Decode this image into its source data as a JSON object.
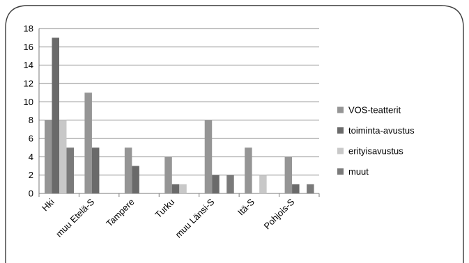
{
  "chart_data": {
    "type": "bar",
    "categories": [
      "Hki",
      "muu Etelä-S",
      "Tampere",
      "Turku",
      "muu Länsi-S",
      "Itä-S",
      "Pohjois-S"
    ],
    "series": [
      {
        "name": "VOS-teatterit",
        "color": "#959595",
        "values": [
          8,
          11,
          5,
          4,
          8,
          5,
          4
        ]
      },
      {
        "name": "toiminta-avustus",
        "color": "#6a6a6a",
        "values": [
          17,
          5,
          3,
          1,
          2,
          0,
          1
        ]
      },
      {
        "name": "erityisavustus",
        "color": "#c8c8c8",
        "values": [
          8,
          0,
          0,
          1,
          0,
          2,
          0
        ]
      },
      {
        "name": "muut",
        "color": "#7a7a7a",
        "values": [
          5,
          0,
          0,
          0,
          2,
          0,
          1
        ]
      }
    ],
    "ylim": [
      0,
      18
    ],
    "yticks": [
      "0",
      "2",
      "4",
      "6",
      "8",
      "10",
      "12",
      "14",
      "16",
      "18"
    ],
    "grid": true,
    "legend_position": "right"
  }
}
